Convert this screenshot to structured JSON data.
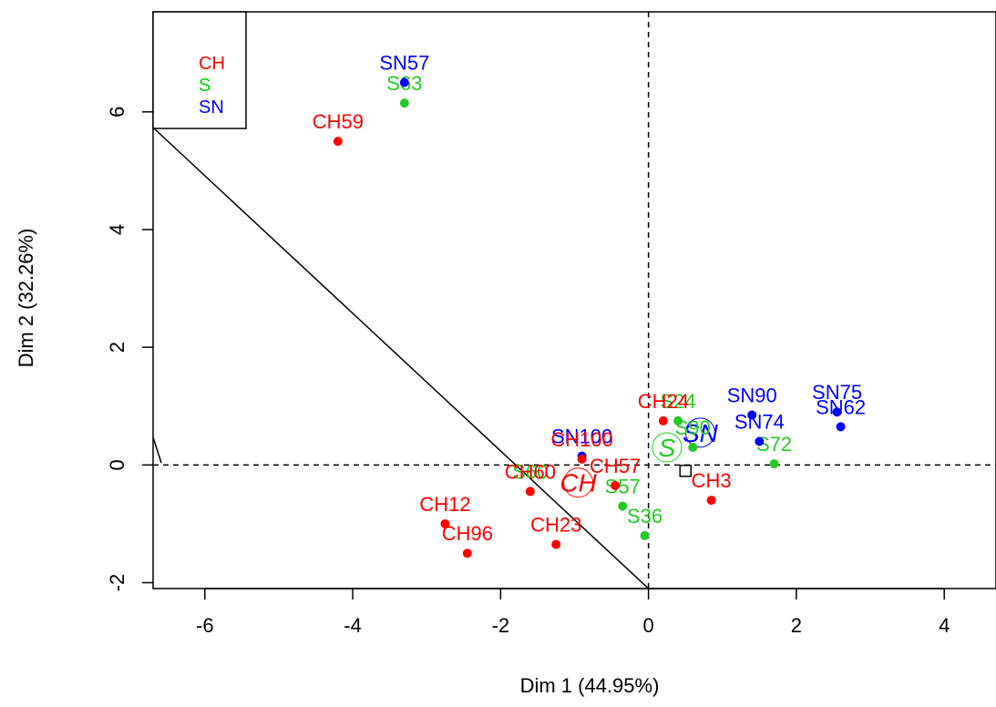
{
  "chart_data": {
    "type": "scatter",
    "xlabel": "Dim 1 (44.95%)",
    "ylabel": "Dim 2 (32.26%)",
    "xlim": [
      -6.7,
      4.7
    ],
    "ylim": [
      -2.1,
      7.7
    ],
    "xticks": [
      "-6",
      "-4",
      "-2",
      "0",
      "2",
      "4"
    ],
    "yticks": [
      "-2",
      "0",
      "2",
      "4",
      "6"
    ],
    "reference_lines": {
      "x": 0,
      "y": 0,
      "style": "dashed"
    },
    "legend": {
      "position": "top-left",
      "entries": [
        {
          "label": "CH",
          "color": "#ff0000"
        },
        {
          "label": "S",
          "color": "#00cc00"
        },
        {
          "label": "SN",
          "color": "#0000ff"
        }
      ]
    },
    "colors": {
      "CH": "#ff0000",
      "S": "#22cc22",
      "SN": "#0000ff"
    },
    "points": [
      {
        "group": "S",
        "x": -3.3,
        "y": 6.15,
        "label": "S63"
      },
      {
        "group": "SN",
        "x": -3.3,
        "y": 6.5,
        "label": "SN57"
      },
      {
        "group": "CH",
        "x": -4.2,
        "y": 5.5,
        "label": "CH59"
      },
      {
        "group": "SN",
        "x": 2.6,
        "y": 0.65,
        "label": "SN62"
      },
      {
        "group": "SN",
        "x": 2.55,
        "y": 0.9,
        "label": "SN75"
      },
      {
        "group": "S",
        "x": 1.7,
        "y": 0.02,
        "label": "S72"
      },
      {
        "group": "SN",
        "x": 1.5,
        "y": 0.4,
        "label": "SN74"
      },
      {
        "group": "SN",
        "x": 1.4,
        "y": 0.85,
        "label": "SN90"
      },
      {
        "group": "S",
        "x": 0.6,
        "y": 0.3,
        "label": "S90"
      },
      {
        "group": "CH",
        "x": 0.85,
        "y": -0.6,
        "label": "CH3"
      },
      {
        "group": "S",
        "x": 0.4,
        "y": 0.75,
        "label": "S24"
      },
      {
        "group": "CH",
        "x": 0.2,
        "y": 0.75,
        "label": "CH24"
      },
      {
        "group": "S",
        "x": -0.05,
        "y": -1.2,
        "label": "S36"
      },
      {
        "group": "S",
        "x": -0.35,
        "y": -0.7,
        "label": "S57"
      },
      {
        "group": "CH",
        "x": -0.45,
        "y": -0.35,
        "label": "CH57"
      },
      {
        "group": "SN",
        "x": -0.9,
        "y": 0.15,
        "label": "SN100"
      },
      {
        "group": "CH",
        "x": -0.9,
        "y": 0.1,
        "label": "CH100"
      },
      {
        "group": "S",
        "x": -1.6,
        "y": -0.45,
        "label": "S60"
      },
      {
        "group": "CH",
        "x": -1.6,
        "y": -0.45,
        "label": "CH60"
      },
      {
        "group": "CH",
        "x": -2.75,
        "y": -1.0,
        "label": "CH12"
      },
      {
        "group": "CH",
        "x": -2.45,
        "y": -1.5,
        "label": "CH96"
      },
      {
        "group": "CH",
        "x": -1.25,
        "y": -1.35,
        "label": "CH23"
      }
    ],
    "category_labels": [
      {
        "label": "CH",
        "color": "#ff0000",
        "x": -0.95,
        "y": -0.3
      },
      {
        "label": "S",
        "color": "#22cc22",
        "x": 0.25,
        "y": 0.3
      },
      {
        "label": "SN",
        "color": "#0000ff",
        "x": 0.7,
        "y": 0.55
      }
    ],
    "barycenter": {
      "x": 0.5,
      "y": -0.1
    }
  }
}
